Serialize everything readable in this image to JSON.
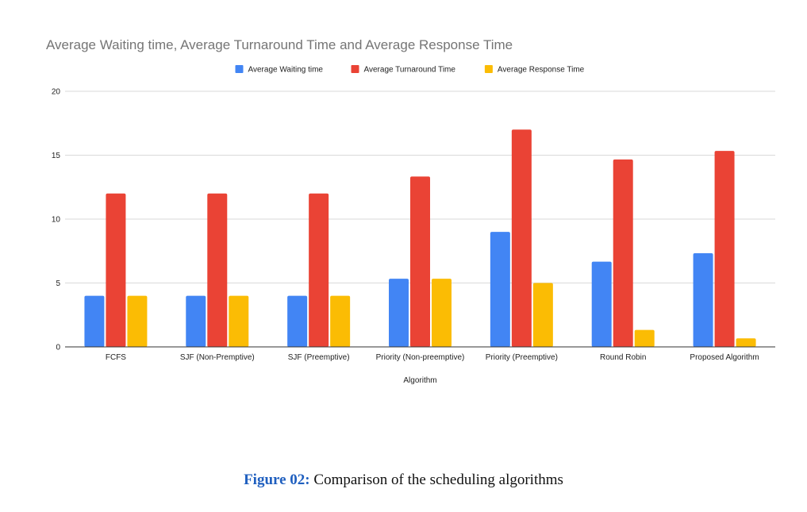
{
  "chart_data": {
    "type": "bar",
    "title": "Average Waiting time, Average Turnaround  Time and Average Response Time",
    "xlabel": "Algorithm",
    "ylabel": "",
    "ylim": [
      0,
      20
    ],
    "yticks": [
      0,
      5,
      10,
      15,
      20
    ],
    "grid": true,
    "legend_position": "top-center",
    "categories": [
      "FCFS",
      "SJF (Non-Premptive)",
      "SJF (Preemptive)",
      "Priority (Non-preemptive)",
      "Priority (Preemptive)",
      "Round Robin",
      "Proposed Algorithm"
    ],
    "series": [
      {
        "name": "Average Waiting time",
        "color": "#4285f4",
        "values": [
          4,
          4,
          4,
          5.33,
          9,
          6.67,
          7.33
        ]
      },
      {
        "name": "Average Turnaround  Time",
        "color": "#ea4335",
        "values": [
          12,
          12,
          12,
          13.33,
          17,
          14.67,
          15.33
        ]
      },
      {
        "name": "Average Response Time",
        "color": "#fbbc04",
        "values": [
          4,
          4,
          4,
          5.33,
          5,
          1.33,
          0.67
        ]
      }
    ]
  },
  "caption": {
    "label": "Figure 02:",
    "text": " Comparison of the scheduling algorithms"
  }
}
